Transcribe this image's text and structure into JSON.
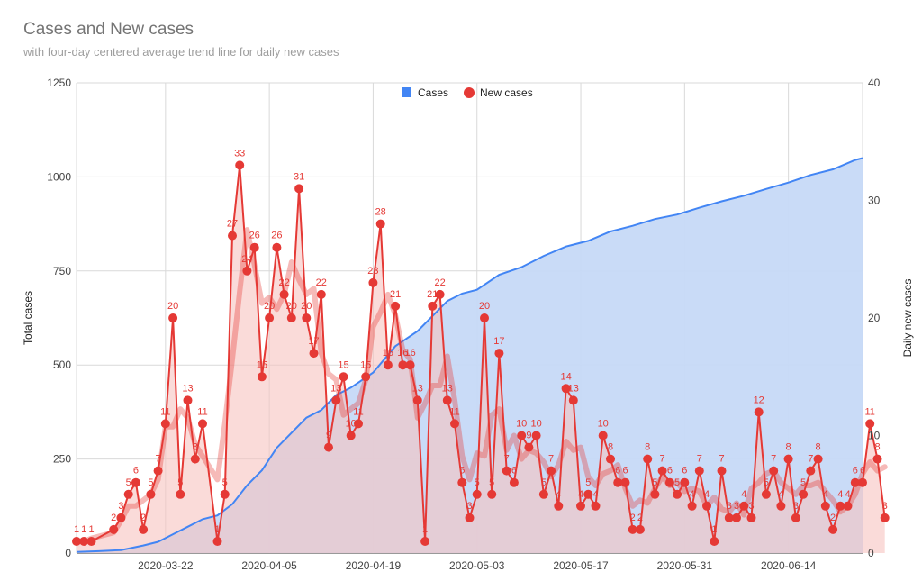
{
  "chart_data": {
    "type": "area",
    "title": "Cases and New cases",
    "subtitle": "with four-day centered average trend line for daily new cases",
    "y_left_label": "Total cases",
    "y_right_label": "Daily new cases",
    "y_left_range": [
      0,
      1250
    ],
    "y_left_ticks": [
      0,
      250,
      500,
      750,
      1000,
      1250
    ],
    "y_right_range": [
      0,
      40
    ],
    "y_right_ticks": [
      0,
      10,
      20,
      30,
      40
    ],
    "x_start": "2020-03-10",
    "x_end": "2020-06-24",
    "x_ticks": [
      "2020-03-22",
      "2020-04-05",
      "2020-04-19",
      "2020-05-03",
      "2020-05-17",
      "2020-05-31",
      "2020-06-14"
    ],
    "grid": true,
    "legend_position": "top",
    "series": [
      {
        "name": "Cases",
        "color": "#4285f4",
        "fill": "#c6d9f7",
        "axis": "left"
      },
      {
        "name": "New cases",
        "color": "#e53935",
        "fill": "#f7c3bf",
        "axis": "right"
      }
    ],
    "total_cases": [
      [
        "2020-03-10",
        3
      ],
      [
        "2020-03-13",
        5
      ],
      [
        "2020-03-16",
        8
      ],
      [
        "2020-03-19",
        20
      ],
      [
        "2020-03-21",
        30
      ],
      [
        "2020-03-23",
        50
      ],
      [
        "2020-03-25",
        70
      ],
      [
        "2020-03-27",
        90
      ],
      [
        "2020-03-29",
        100
      ],
      [
        "2020-03-31",
        130
      ],
      [
        "2020-04-02",
        180
      ],
      [
        "2020-04-04",
        220
      ],
      [
        "2020-04-06",
        280
      ],
      [
        "2020-04-08",
        320
      ],
      [
        "2020-04-10",
        360
      ],
      [
        "2020-04-12",
        380
      ],
      [
        "2020-04-14",
        420
      ],
      [
        "2020-04-16",
        440
      ],
      [
        "2020-04-19",
        480
      ],
      [
        "2020-04-22",
        550
      ],
      [
        "2020-04-25",
        590
      ],
      [
        "2020-04-27",
        630
      ],
      [
        "2020-04-29",
        670
      ],
      [
        "2020-05-01",
        690
      ],
      [
        "2020-05-03",
        700
      ],
      [
        "2020-05-06",
        740
      ],
      [
        "2020-05-09",
        760
      ],
      [
        "2020-05-12",
        790
      ],
      [
        "2020-05-15",
        815
      ],
      [
        "2020-05-18",
        830
      ],
      [
        "2020-05-21",
        855
      ],
      [
        "2020-05-24",
        870
      ],
      [
        "2020-05-27",
        888
      ],
      [
        "2020-05-30",
        900
      ],
      [
        "2020-06-02",
        918
      ],
      [
        "2020-06-05",
        935
      ],
      [
        "2020-06-08",
        950
      ],
      [
        "2020-06-11",
        968
      ],
      [
        "2020-06-14",
        985
      ],
      [
        "2020-06-17",
        1005
      ],
      [
        "2020-06-20",
        1020
      ],
      [
        "2020-06-23",
        1045
      ],
      [
        "2020-06-24",
        1050
      ]
    ],
    "new_cases": [
      [
        "2020-03-10",
        1
      ],
      [
        "2020-03-11",
        1
      ],
      [
        "2020-03-12",
        1
      ],
      [
        "2020-03-15",
        2
      ],
      [
        "2020-03-16",
        3
      ],
      [
        "2020-03-17",
        5
      ],
      [
        "2020-03-18",
        6
      ],
      [
        "2020-03-19",
        2
      ],
      [
        "2020-03-20",
        5
      ],
      [
        "2020-03-21",
        7
      ],
      [
        "2020-03-22",
        11
      ],
      [
        "2020-03-23",
        20
      ],
      [
        "2020-03-24",
        5
      ],
      [
        "2020-03-25",
        13
      ],
      [
        "2020-03-26",
        8
      ],
      [
        "2020-03-27",
        11
      ],
      [
        "2020-03-29",
        1
      ],
      [
        "2020-03-30",
        5
      ],
      [
        "2020-03-31",
        27
      ],
      [
        "2020-04-01",
        33
      ],
      [
        "2020-04-02",
        24
      ],
      [
        "2020-04-03",
        26
      ],
      [
        "2020-04-04",
        15
      ],
      [
        "2020-04-05",
        20
      ],
      [
        "2020-04-06",
        26
      ],
      [
        "2020-04-07",
        22
      ],
      [
        "2020-04-08",
        20
      ],
      [
        "2020-04-09",
        31
      ],
      [
        "2020-04-10",
        20
      ],
      [
        "2020-04-11",
        17
      ],
      [
        "2020-04-12",
        22
      ],
      [
        "2020-04-13",
        9
      ],
      [
        "2020-04-14",
        13
      ],
      [
        "2020-04-15",
        15
      ],
      [
        "2020-04-16",
        10
      ],
      [
        "2020-04-17",
        11
      ],
      [
        "2020-04-18",
        15
      ],
      [
        "2020-04-19",
        23
      ],
      [
        "2020-04-20",
        28
      ],
      [
        "2020-04-21",
        16
      ],
      [
        "2020-04-22",
        21
      ],
      [
        "2020-04-23",
        16
      ],
      [
        "2020-04-24",
        16
      ],
      [
        "2020-04-25",
        13
      ],
      [
        "2020-04-26",
        1
      ],
      [
        "2020-04-27",
        21
      ],
      [
        "2020-04-28",
        22
      ],
      [
        "2020-04-29",
        13
      ],
      [
        "2020-04-30",
        11
      ],
      [
        "2020-05-01",
        6
      ],
      [
        "2020-05-02",
        3
      ],
      [
        "2020-05-03",
        5
      ],
      [
        "2020-05-04",
        20
      ],
      [
        "2020-05-05",
        5
      ],
      [
        "2020-05-06",
        17
      ],
      [
        "2020-05-07",
        7
      ],
      [
        "2020-05-08",
        6
      ],
      [
        "2020-05-09",
        10
      ],
      [
        "2020-05-10",
        9
      ],
      [
        "2020-05-11",
        10
      ],
      [
        "2020-05-12",
        5
      ],
      [
        "2020-05-13",
        7
      ],
      [
        "2020-05-14",
        4
      ],
      [
        "2020-05-15",
        14
      ],
      [
        "2020-05-16",
        13
      ],
      [
        "2020-05-17",
        4
      ],
      [
        "2020-05-18",
        5
      ],
      [
        "2020-05-19",
        4
      ],
      [
        "2020-05-20",
        10
      ],
      [
        "2020-05-21",
        8
      ],
      [
        "2020-05-22",
        6
      ],
      [
        "2020-05-23",
        6
      ],
      [
        "2020-05-24",
        2
      ],
      [
        "2020-05-25",
        2
      ],
      [
        "2020-05-26",
        8
      ],
      [
        "2020-05-27",
        5
      ],
      [
        "2020-05-28",
        7
      ],
      [
        "2020-05-29",
        6
      ],
      [
        "2020-05-30",
        5
      ],
      [
        "2020-05-31",
        6
      ],
      [
        "2020-06-01",
        4
      ],
      [
        "2020-06-02",
        7
      ],
      [
        "2020-06-03",
        4
      ],
      [
        "2020-06-04",
        1
      ],
      [
        "2020-06-05",
        7
      ],
      [
        "2020-06-06",
        3
      ],
      [
        "2020-06-07",
        3
      ],
      [
        "2020-06-08",
        4
      ],
      [
        "2020-06-09",
        3
      ],
      [
        "2020-06-10",
        12
      ],
      [
        "2020-06-11",
        5
      ],
      [
        "2020-06-12",
        7
      ],
      [
        "2020-06-13",
        4
      ],
      [
        "2020-06-14",
        8
      ],
      [
        "2020-06-15",
        3
      ],
      [
        "2020-06-16",
        5
      ],
      [
        "2020-06-17",
        7
      ],
      [
        "2020-06-18",
        8
      ],
      [
        "2020-06-19",
        4
      ],
      [
        "2020-06-20",
        2
      ],
      [
        "2020-06-21",
        4
      ],
      [
        "2020-06-22",
        4
      ],
      [
        "2020-06-23",
        6
      ],
      [
        "2020-06-24",
        6
      ],
      [
        "2020-06-25",
        11
      ],
      [
        "2020-06-26",
        8
      ],
      [
        "2020-06-27",
        3
      ]
    ]
  }
}
